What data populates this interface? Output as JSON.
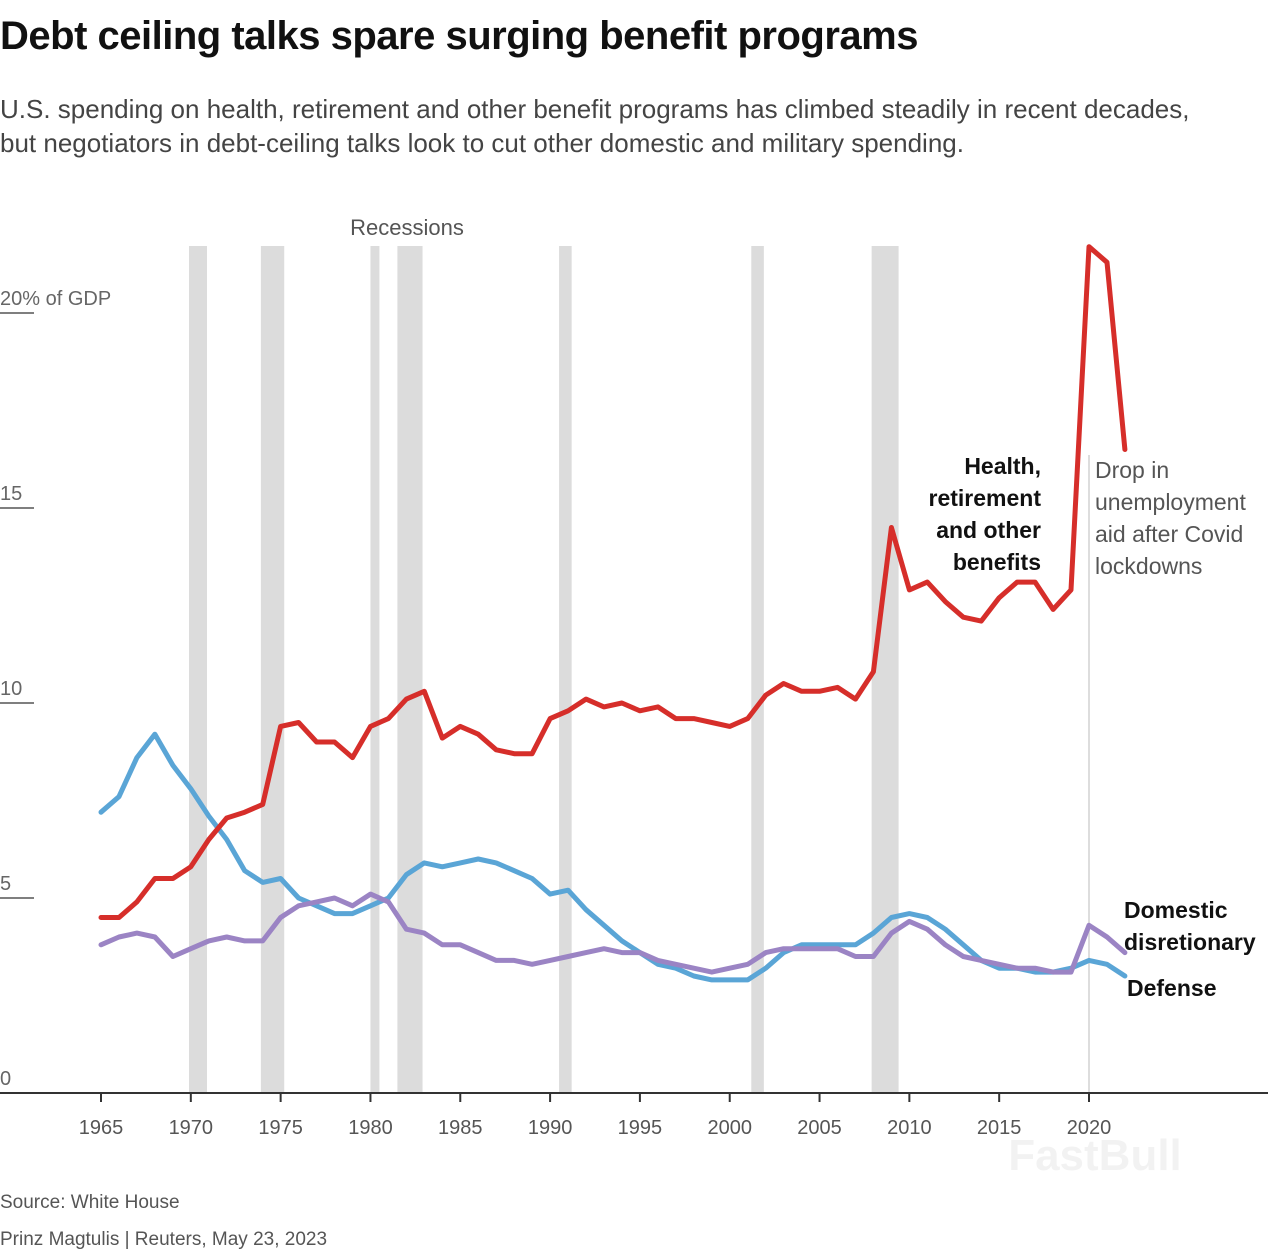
{
  "title": "Debt ceiling talks spare surging benefit programs",
  "subtitle": "U.S. spending on health, retirement and other benefit programs has climbed steadily in recent decades, but negotiators in debt-ceiling talks look to cut other domestic and military spending.",
  "source": "Source: White House",
  "byline": "Prinz Magtulis |  Reuters, May 23, 2023",
  "watermark": "FastBull",
  "chart_data": {
    "type": "line",
    "xlim": [
      1965,
      2022
    ],
    "ylim": [
      0,
      22
    ],
    "y_unit_label": "20% of GDP",
    "y_ticks": [
      {
        "v": 0,
        "label": "0"
      },
      {
        "v": 5,
        "label": "5"
      },
      {
        "v": 10,
        "label": "10"
      },
      {
        "v": 15,
        "label": "15"
      },
      {
        "v": 20,
        "label": "20% of GDP"
      }
    ],
    "x_ticks": [
      1965,
      1970,
      1975,
      1980,
      1985,
      1990,
      1995,
      2000,
      2005,
      2010,
      2015,
      2020
    ],
    "grid": false,
    "recessions_label": "Recessions",
    "recessions": [
      [
        1969.9,
        1970.9
      ],
      [
        1973.9,
        1975.2
      ],
      [
        1980.0,
        1980.5
      ],
      [
        1981.5,
        1982.9
      ],
      [
        1990.5,
        1991.2
      ],
      [
        2001.2,
        2001.9
      ],
      [
        2007.9,
        2009.4
      ]
    ],
    "recession_color": "#dcdcdc",
    "annotation": "Drop in unemployment aid after Covid lockdowns",
    "annotation_lines": [
      "Drop in",
      "unemployment",
      "aid after Covid",
      "lockdowns"
    ],
    "x": [
      1965,
      1966,
      1967,
      1968,
      1969,
      1970,
      1971,
      1972,
      1973,
      1974,
      1975,
      1976,
      1977,
      1978,
      1979,
      1980,
      1981,
      1982,
      1983,
      1984,
      1985,
      1986,
      1987,
      1988,
      1989,
      1990,
      1991,
      1992,
      1993,
      1994,
      1995,
      1996,
      1997,
      1998,
      1999,
      2000,
      2001,
      2002,
      2003,
      2004,
      2005,
      2006,
      2007,
      2008,
      2009,
      2010,
      2011,
      2012,
      2013,
      2014,
      2015,
      2016,
      2017,
      2018,
      2019,
      2020,
      2021,
      2022
    ],
    "series": [
      {
        "name": "Health, retirement and other benefits",
        "label_lines": [
          "Health,",
          "retirement",
          "and other",
          "benefits"
        ],
        "color": "#d62e2a",
        "values": [
          4.5,
          4.5,
          4.9,
          5.5,
          5.5,
          5.8,
          6.5,
          7.05,
          7.2,
          7.4,
          9.4,
          9.5,
          9.0,
          9.0,
          8.6,
          9.4,
          9.6,
          10.1,
          10.3,
          9.1,
          9.4,
          9.2,
          8.8,
          8.7,
          8.7,
          9.6,
          9.8,
          10.1,
          9.9,
          10.0,
          9.8,
          9.9,
          9.6,
          9.6,
          9.5,
          9.4,
          9.6,
          10.2,
          10.5,
          10.3,
          10.3,
          10.4,
          10.1,
          10.8,
          14.5,
          12.9,
          13.1,
          12.6,
          12.2,
          12.1,
          12.7,
          13.1,
          13.1,
          12.4,
          12.9,
          21.7,
          21.3,
          16.5
        ]
      },
      {
        "name": "Domestic disretionary",
        "label_lines": [
          "Domestic",
          "disretionary"
        ],
        "color": "#9b84c4",
        "values": [
          3.8,
          4.0,
          4.1,
          4.0,
          3.5,
          3.7,
          3.9,
          4.0,
          3.9,
          3.9,
          4.5,
          4.8,
          4.9,
          5.0,
          4.8,
          5.1,
          4.9,
          4.2,
          4.1,
          3.8,
          3.8,
          3.6,
          3.4,
          3.4,
          3.3,
          3.4,
          3.5,
          3.6,
          3.7,
          3.6,
          3.6,
          3.4,
          3.3,
          3.2,
          3.1,
          3.2,
          3.3,
          3.6,
          3.7,
          3.7,
          3.7,
          3.7,
          3.5,
          3.5,
          4.1,
          4.4,
          4.2,
          3.8,
          3.5,
          3.4,
          3.3,
          3.2,
          3.2,
          3.1,
          3.1,
          4.3,
          4.0,
          3.6
        ]
      },
      {
        "name": "Defense",
        "label_lines": [
          "Defense"
        ],
        "color": "#5aa5d6",
        "values": [
          7.2,
          7.6,
          8.6,
          9.2,
          8.4,
          7.8,
          7.1,
          6.5,
          5.7,
          5.4,
          5.5,
          5.0,
          4.8,
          4.6,
          4.6,
          4.8,
          5.0,
          5.6,
          5.9,
          5.8,
          5.9,
          6.0,
          5.9,
          5.7,
          5.5,
          5.1,
          5.2,
          4.7,
          4.3,
          3.9,
          3.6,
          3.3,
          3.2,
          3.0,
          2.9,
          2.9,
          2.9,
          3.2,
          3.6,
          3.8,
          3.8,
          3.8,
          3.8,
          4.1,
          4.5,
          4.6,
          4.5,
          4.2,
          3.8,
          3.4,
          3.2,
          3.2,
          3.1,
          3.1,
          3.2,
          3.4,
          3.3,
          3.0
        ]
      }
    ]
  }
}
